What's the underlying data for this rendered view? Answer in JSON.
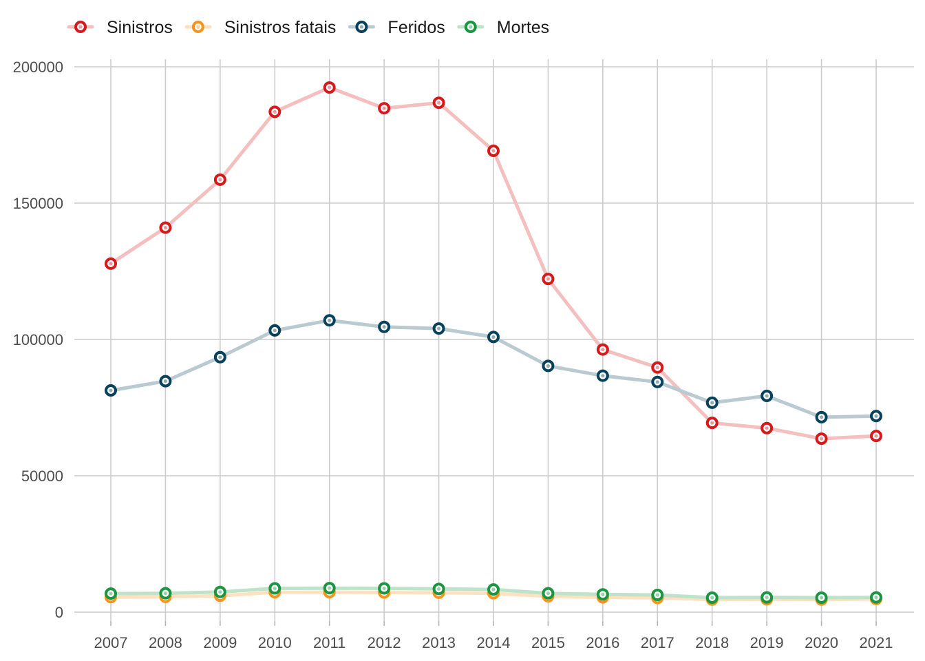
{
  "chart_data": {
    "type": "line",
    "title": "",
    "xlabel": "",
    "ylabel": "",
    "x": [
      2007,
      2008,
      2009,
      2010,
      2011,
      2012,
      2013,
      2014,
      2015,
      2016,
      2017,
      2018,
      2019,
      2020,
      2021
    ],
    "x_tick_labels": [
      "2007",
      "2008",
      "2009",
      "2010",
      "2011",
      "2012",
      "2013",
      "2014",
      "2015",
      "2016",
      "2017",
      "2018",
      "2019",
      "2020",
      "2021"
    ],
    "ylim": [
      0,
      200000
    ],
    "y_ticks": [
      0,
      50000,
      100000,
      150000,
      200000
    ],
    "y_tick_labels": [
      "0",
      "50000",
      "100000",
      "150000",
      "200000"
    ],
    "grid": true,
    "legend_position": "top-left",
    "series": [
      {
        "name": "Sinistros",
        "color": "#d7191c",
        "values": [
          127800,
          141000,
          158600,
          183500,
          192400,
          184800,
          186800,
          169200,
          122200,
          96300,
          89700,
          69400,
          67500,
          63600,
          64600
        ]
      },
      {
        "name": "Sinistros fatais",
        "color": "#f7941d",
        "values": [
          5500,
          5600,
          6000,
          7300,
          7300,
          7200,
          7100,
          6900,
          5800,
          5400,
          5200,
          4600,
          4700,
          4600,
          4800
        ]
      },
      {
        "name": "Feridos",
        "color": "#08415c",
        "values": [
          81300,
          84700,
          93500,
          103300,
          107000,
          104600,
          104000,
          100900,
          90300,
          86700,
          84400,
          76800,
          79300,
          71500,
          71900
        ]
      },
      {
        "name": "Mortes",
        "color": "#1a9641",
        "values": [
          6800,
          6900,
          7400,
          8700,
          8800,
          8700,
          8500,
          8300,
          6900,
          6500,
          6300,
          5300,
          5400,
          5300,
          5400
        ]
      }
    ]
  }
}
